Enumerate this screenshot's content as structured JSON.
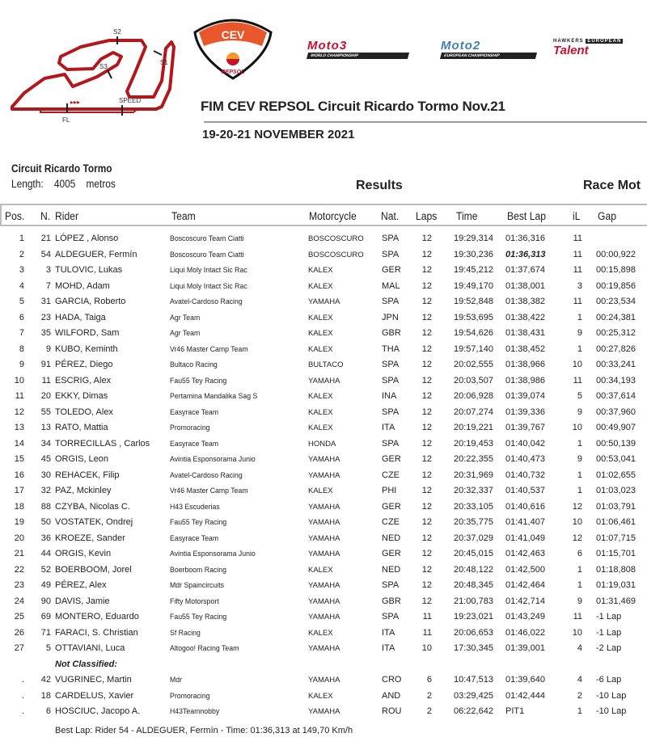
{
  "header": {
    "title": "FIM CEV REPSOL Circuit Ricardo Tormo Nov.21",
    "date": "19-20-21 NOVEMBER 2021",
    "track_labels": {
      "s1": "S1",
      "s2": "S2",
      "s3": "S3",
      "speed": "SPEED",
      "fl": "FL"
    },
    "logos": {
      "cev": "FIM CEV REPSOL",
      "moto3": "Moto3 Junior World Championship",
      "moto2": "Moto2 European Championship",
      "talent": "Hawkers European Talent Cup"
    },
    "colors": {
      "track": "#b3171c",
      "cev_orange": "#e8572a",
      "moto3_red": "#c8102e",
      "moto2_blue": "#3f7fb5"
    }
  },
  "circuit": {
    "name": "Circuit Ricardo Tormo",
    "length_label": "Length:",
    "length_value": "4005",
    "length_unit": "metros"
  },
  "section_title": "Results",
  "race_label": "Race  Mot",
  "columns": [
    "Pos.",
    "N.",
    "Rider",
    "Team",
    "Motorcycle",
    "Nat.",
    "Laps",
    "Time",
    "Best Lap",
    "iL",
    "Gap"
  ],
  "rows": [
    {
      "pos": "1",
      "num": "21",
      "rider": "LÓPEZ , Alonso",
      "team": "Boscoscuro Team Ciatti",
      "moto": "BOSCOSCURO",
      "nat": "SPA",
      "laps": "12",
      "time": "19:29,314",
      "best": "01:36,316",
      "il": "11",
      "gap": ""
    },
    {
      "pos": "2",
      "num": "54",
      "rider": "ALDEGUER, Fermín",
      "team": "Boscoscuro Team Ciatti",
      "moto": "BOSCOSCURO",
      "nat": "SPA",
      "laps": "12",
      "time": "19:30,236",
      "best": "01:36,313",
      "il": "11",
      "gap": "00:00,922",
      "best_highlight": true
    },
    {
      "pos": "3",
      "num": "3",
      "rider": "TULOVIC, Lukas",
      "team": "Liqui Moly Intact Sic Rac",
      "moto": "KALEX",
      "nat": "GER",
      "laps": "12",
      "time": "19:45,212",
      "best": "01:37,674",
      "il": "11",
      "gap": "00:15,898"
    },
    {
      "pos": "4",
      "num": "7",
      "rider": "MOHD, Adam",
      "team": "Liqui Moly Intact Sic Rac",
      "moto": "KALEX",
      "nat": "MAL",
      "laps": "12",
      "time": "19:49,170",
      "best": "01:38,001",
      "il": "3",
      "gap": "00:19,856"
    },
    {
      "pos": "5",
      "num": "31",
      "rider": "GARCIA, Roberto",
      "team": "Avatel-Cardoso Racing",
      "moto": "YAMAHA",
      "nat": "SPA",
      "laps": "12",
      "time": "19:52,848",
      "best": "01:38,382",
      "il": "11",
      "gap": "00:23,534"
    },
    {
      "pos": "6",
      "num": "23",
      "rider": "HADA, Taiga",
      "team": "Agr Team",
      "moto": "KALEX",
      "nat": "JPN",
      "laps": "12",
      "time": "19:53,695",
      "best": "01:38,422",
      "il": "1",
      "gap": "00:24,381"
    },
    {
      "pos": "7",
      "num": "35",
      "rider": "WILFORD, Sam",
      "team": "Agr Team",
      "moto": "KALEX",
      "nat": "GBR",
      "laps": "12",
      "time": "19:54,626",
      "best": "01:38,431",
      "il": "9",
      "gap": "00:25,312"
    },
    {
      "pos": "8",
      "num": "9",
      "rider": "KUBO, Keminth",
      "team": "Vr46 Master Camp Team",
      "moto": "KALEX",
      "nat": "THA",
      "laps": "12",
      "time": "19:57,140",
      "best": "01:38,452",
      "il": "1",
      "gap": "00:27,826"
    },
    {
      "pos": "9",
      "num": "91",
      "rider": "PÉREZ, Diego",
      "team": "Bultaco Racing",
      "moto": "BULTACO",
      "nat": "SPA",
      "laps": "12",
      "time": "20:02,555",
      "best": "01:38,966",
      "il": "10",
      "gap": "00:33,241"
    },
    {
      "pos": "10",
      "num": "11",
      "rider": "ESCRIG, Alex",
      "team": "Fau55 Tey Racing",
      "moto": "YAMAHA",
      "nat": "SPA",
      "laps": "12",
      "time": "20:03,507",
      "best": "01:38,986",
      "il": "11",
      "gap": "00:34,193"
    },
    {
      "pos": "11",
      "num": "20",
      "rider": "EKKY, Dimas",
      "team": "Pertamina Mandalika Sag S",
      "moto": "KALEX",
      "nat": "INA",
      "laps": "12",
      "time": "20:06,928",
      "best": "01:39,074",
      "il": "5",
      "gap": "00:37,614"
    },
    {
      "pos": "12",
      "num": "55",
      "rider": "TOLEDO, Alex",
      "team": "Easyrace Team",
      "moto": "KALEX",
      "nat": "SPA",
      "laps": "12",
      "time": "20:07,274",
      "best": "01:39,336",
      "il": "9",
      "gap": "00:37,960"
    },
    {
      "pos": "13",
      "num": "13",
      "rider": "RATO, Mattia",
      "team": "Promoracing",
      "moto": "KALEX",
      "nat": "ITA",
      "laps": "12",
      "time": "20:19,221",
      "best": "01:39,767",
      "il": "10",
      "gap": "00:49,907"
    },
    {
      "pos": "14",
      "num": "34",
      "rider": "TORRECILLAS , Carlos",
      "team": "Easyrace Team",
      "moto": "HONDA",
      "nat": "SPA",
      "laps": "12",
      "time": "20:19,453",
      "best": "01:40,042",
      "il": "1",
      "gap": "00:50,139"
    },
    {
      "pos": "15",
      "num": "45",
      "rider": "ORGIS, Leon",
      "team": "Avintia Esponsorama Junio",
      "moto": "YAMAHA",
      "nat": "GER",
      "laps": "12",
      "time": "20:22,355",
      "best": "01:40,473",
      "il": "9",
      "gap": "00:53,041"
    },
    {
      "pos": "16",
      "num": "30",
      "rider": "REHACEK, Filip",
      "team": "Avatel-Cardoso Racing",
      "moto": "YAMAHA",
      "nat": "CZE",
      "laps": "12",
      "time": "20:31,969",
      "best": "01:40,732",
      "il": "1",
      "gap": "01:02,655"
    },
    {
      "pos": "17",
      "num": "32",
      "rider": "PAZ, Mckinley",
      "team": "Vr46 Master Camp Team",
      "moto": "KALEX",
      "nat": "PHI",
      "laps": "12",
      "time": "20:32,337",
      "best": "01:40,537",
      "il": "1",
      "gap": "01:03,023"
    },
    {
      "pos": "18",
      "num": "88",
      "rider": "CZYBA, Nicolas C.",
      "team": "H43 Escuderias",
      "moto": "YAMAHA",
      "nat": "GER",
      "laps": "12",
      "time": "20:33,105",
      "best": "01:40,616",
      "il": "12",
      "gap": "01:03,791"
    },
    {
      "pos": "19",
      "num": "50",
      "rider": "VOSTATEK, Ondrej",
      "team": "Fau55 Tey Racing",
      "moto": "YAMAHA",
      "nat": "CZE",
      "laps": "12",
      "time": "20:35,775",
      "best": "01:41,407",
      "il": "10",
      "gap": "01:06,461"
    },
    {
      "pos": "20",
      "num": "36",
      "rider": "KROEZE, Sander",
      "team": "Easyrace Team",
      "moto": "YAMAHA",
      "nat": "NED",
      "laps": "12",
      "time": "20:37,029",
      "best": "01:41,049",
      "il": "12",
      "gap": "01:07,715"
    },
    {
      "pos": "21",
      "num": "44",
      "rider": "ORGIS, Kevin",
      "team": "Avintia Esponsorama Junio",
      "moto": "YAMAHA",
      "nat": "GER",
      "laps": "12",
      "time": "20:45,015",
      "best": "01:42,463",
      "il": "6",
      "gap": "01:15,701"
    },
    {
      "pos": "22",
      "num": "52",
      "rider": "BOERBOOM, Jorel",
      "team": "Boerboom Racing",
      "moto": "KALEX",
      "nat": "NED",
      "laps": "12",
      "time": "20:48,122",
      "best": "01:42,500",
      "il": "1",
      "gap": "01:18,808"
    },
    {
      "pos": "23",
      "num": "49",
      "rider": "PÉREZ, Alex",
      "team": "Mdr Spaincircuits",
      "moto": "YAMAHA",
      "nat": "SPA",
      "laps": "12",
      "time": "20:48,345",
      "best": "01:42,464",
      "il": "1",
      "gap": "01:19,031"
    },
    {
      "pos": "24",
      "num": "90",
      "rider": "DAVIS, Jamie",
      "team": "Fifty Motorsport",
      "moto": "YAMAHA",
      "nat": "GBR",
      "laps": "12",
      "time": "21:00,783",
      "best": "01:42,714",
      "il": "9",
      "gap": "01:31,469"
    },
    {
      "pos": "25",
      "num": "69",
      "rider": "MONTERO, Eduardo",
      "team": "Fau55 Tey Racing",
      "moto": "YAMAHA",
      "nat": "SPA",
      "laps": "11",
      "time": "19:23,021",
      "best": "01:43,249",
      "il": "11",
      "gap": "-1 Lap"
    },
    {
      "pos": "26",
      "num": "71",
      "rider": "FARACI, S. Christian",
      "team": "Sf  Racing",
      "moto": "KALEX",
      "nat": "ITA",
      "laps": "11",
      "time": "20:06,653",
      "best": "01:46,022",
      "il": "10",
      "gap": "-1 Lap"
    },
    {
      "pos": "27",
      "num": "5",
      "rider": "OTTAVIANI, Luca",
      "team": "Altogoo! Racing Team",
      "moto": "YAMAHA",
      "nat": "ITA",
      "laps": "10",
      "time": "17:30,345",
      "best": "01:39,001",
      "il": "4",
      "gap": "-2 Lap"
    }
  ],
  "not_classified_label": "Not Classified:",
  "not_classified": [
    {
      "pos": ".",
      "num": "42",
      "rider": "VUGRINEC, Martin",
      "team": "Mdr",
      "moto": "YAMAHA",
      "nat": "CRO",
      "laps": "6",
      "time": "10:47,513",
      "best": "01:39,640",
      "il": "4",
      "gap": "-6 Lap"
    },
    {
      "pos": ".",
      "num": "18",
      "rider": "CARDELUS, Xavier",
      "team": "Promoracing",
      "moto": "KALEX",
      "nat": "AND",
      "laps": "2",
      "time": "03:29,425",
      "best": "01:42,444",
      "il": "2",
      "gap": "-10 Lap"
    },
    {
      "pos": ".",
      "num": "6",
      "rider": "HOSCIUC, Jacopo A.",
      "team": "H43Teamnobby",
      "moto": "YAMAHA",
      "nat": "ROU",
      "laps": "2",
      "time": "06:22,642",
      "best": "PIT1",
      "il": "1",
      "gap": "-10 Lap"
    }
  ],
  "footer": "Best Lap: Rider 54 - ALDEGUER, Fermín - Time: 01:36,313 at 149,70 Km/h"
}
